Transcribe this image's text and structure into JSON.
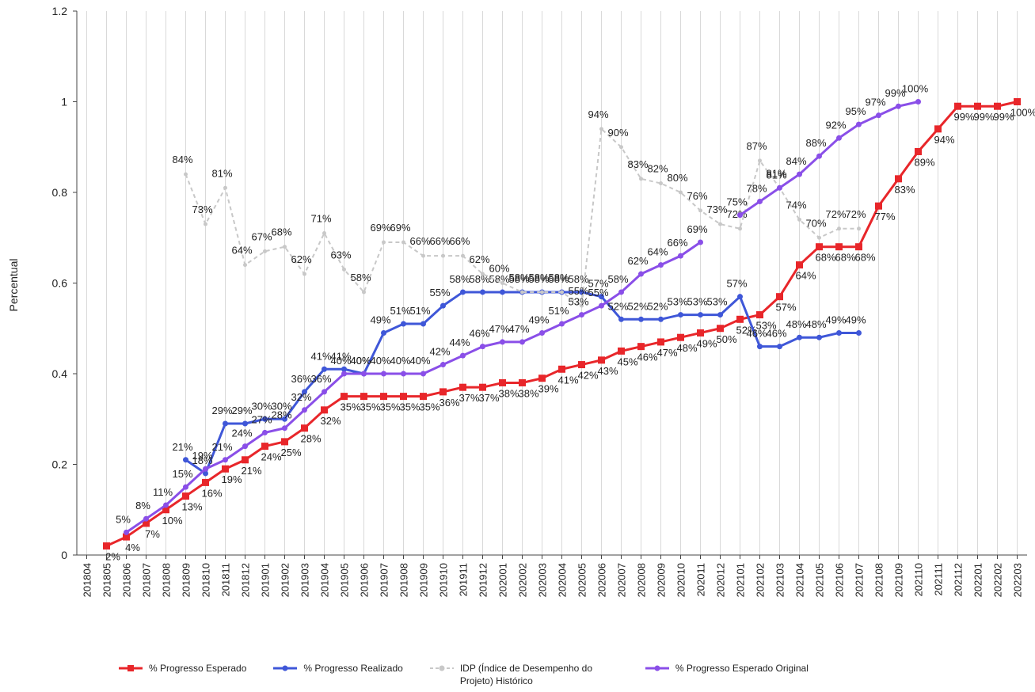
{
  "chart_data": {
    "type": "line",
    "y_label": "Percentual",
    "categories": [
      "201804",
      "201805",
      "201806",
      "201807",
      "201808",
      "201809",
      "201810",
      "201811",
      "201812",
      "201901",
      "201902",
      "201903",
      "201904",
      "201905",
      "201906",
      "201907",
      "201908",
      "201909",
      "201910",
      "201911",
      "201912",
      "202001",
      "202002",
      "202003",
      "202004",
      "202005",
      "202006",
      "202007",
      "202008",
      "202009",
      "202010",
      "202011",
      "202012",
      "202101",
      "202102",
      "202103",
      "202104",
      "202105",
      "202106",
      "202107",
      "202108",
      "202109",
      "202110",
      "202111",
      "202112",
      "202201",
      "202202",
      "202203"
    ],
    "ylim": [
      0,
      1.2
    ],
    "yticks": [
      0,
      0.2,
      0.4,
      0.6,
      0.8,
      1,
      1.2
    ],
    "grid": true,
    "series": [
      {
        "name": "% Progresso Esperado",
        "color": "#e8262a",
        "marker": "square",
        "values": [
          null,
          0.02,
          0.04,
          0.07,
          0.1,
          0.13,
          0.16,
          0.19,
          0.21,
          0.24,
          0.25,
          0.28,
          0.32,
          0.35,
          0.35,
          0.35,
          0.35,
          0.35,
          0.36,
          0.37,
          0.37,
          0.38,
          0.38,
          0.39,
          0.41,
          0.42,
          0.43,
          0.45,
          0.46,
          0.47,
          0.48,
          0.49,
          0.5,
          0.52,
          0.53,
          0.57,
          0.64,
          0.68,
          0.68,
          0.68,
          0.77,
          0.83,
          0.89,
          0.94,
          0.99,
          0.99,
          0.99,
          1.0
        ],
        "value_labels": [
          null,
          "2%",
          "4%",
          "7%",
          "10%",
          "13%",
          "16%",
          "19%",
          "21%",
          "24%",
          "25%",
          "28%",
          "32%",
          "35%",
          "35%",
          "35%",
          "35%",
          "35%",
          "36%",
          "37%",
          "37%",
          "38%",
          "38%",
          "39%",
          "41%",
          "42%",
          "43%",
          "45%",
          "46%",
          "47%",
          "48%",
          "49%",
          "50%",
          "52%",
          "53%",
          "57%",
          "64%",
          "68%",
          "68%",
          "68%",
          "77%",
          "83%",
          "89%",
          "94%",
          "99%",
          "99%",
          "99%",
          "100%"
        ]
      },
      {
        "name": "% Progresso Realizado",
        "color": "#3f57d8",
        "marker": "circle",
        "values": [
          null,
          null,
          null,
          null,
          null,
          0.21,
          0.18,
          0.29,
          0.29,
          0.3,
          0.3,
          0.36,
          0.41,
          0.41,
          0.4,
          0.49,
          0.51,
          0.51,
          0.55,
          0.58,
          0.58,
          0.58,
          0.58,
          0.58,
          0.58,
          0.58,
          0.57,
          0.52,
          0.52,
          0.52,
          0.53,
          0.53,
          0.53,
          0.57,
          0.46,
          0.46,
          0.48,
          0.48,
          0.49,
          0.49,
          null,
          null,
          null,
          null,
          null,
          null,
          null,
          null
        ],
        "value_labels": [
          null,
          null,
          null,
          null,
          null,
          "21%",
          "18%",
          "29%",
          "29%",
          "30%",
          "30%",
          "36%",
          "41%",
          "41%",
          "40%",
          "49%",
          "51%",
          "51%",
          "55%",
          "58%",
          "58%",
          "58%",
          "58%",
          "58%",
          "58%",
          "58%",
          "57%",
          "52%",
          "52%",
          "52%",
          "53%",
          "53%",
          "53%",
          "57%",
          "46%",
          "46%",
          "48%",
          "48%",
          "49%",
          "49%",
          null,
          null,
          null,
          null,
          null,
          null,
          null,
          null
        ]
      },
      {
        "name": "IDP (Índice de Desempenho do Projeto) Histórico",
        "color": "#c8c8c8",
        "marker": "circle",
        "dashed": true,
        "values": [
          null,
          null,
          null,
          null,
          null,
          0.84,
          0.73,
          0.81,
          0.64,
          0.67,
          0.68,
          0.62,
          0.71,
          0.63,
          0.58,
          0.69,
          0.69,
          0.66,
          0.66,
          0.66,
          0.62,
          0.6,
          0.58,
          0.58,
          0.58,
          0.55,
          0.94,
          0.9,
          0.83,
          0.82,
          0.8,
          0.76,
          0.73,
          0.72,
          0.87,
          0.81,
          0.74,
          0.7,
          0.72,
          0.72,
          null,
          null,
          null,
          null,
          null,
          null,
          null,
          null
        ],
        "value_labels": [
          null,
          null,
          null,
          null,
          null,
          "84%",
          "73%",
          "81%",
          "64%",
          "67%",
          "68%",
          "62%",
          "71%",
          "63%",
          "58%",
          "69%",
          "69%",
          "66%",
          "66%",
          "66%",
          "62%",
          "60%",
          "58%",
          "58%",
          "58%",
          "55%",
          "94%",
          "90%",
          "83%",
          "82%",
          "80%",
          "76%",
          "73%",
          "72%",
          "87%",
          "81%",
          "74%",
          "70%",
          "72%",
          "72%",
          null,
          null,
          null,
          null,
          null,
          null,
          null,
          null
        ]
      },
      {
        "name": "% Progresso Esperado Original",
        "color": "#8a4fe8",
        "marker": "circle",
        "values": [
          null,
          null,
          0.05,
          0.08,
          0.11,
          0.15,
          0.19,
          0.21,
          0.24,
          0.27,
          0.28,
          0.32,
          0.36,
          0.4,
          0.4,
          0.4,
          0.4,
          0.4,
          0.42,
          0.44,
          0.46,
          0.47,
          0.47,
          0.49,
          0.51,
          0.53,
          0.55,
          0.58,
          0.62,
          0.64,
          0.66,
          0.69,
          null,
          0.75,
          0.78,
          0.81,
          0.84,
          0.88,
          0.92,
          0.95,
          0.97,
          0.99,
          1.0,
          null,
          null,
          null,
          null,
          null
        ],
        "value_labels": [
          null,
          null,
          "5%",
          "8%",
          "11%",
          "15%",
          "19%",
          "21%",
          "24%",
          "27%",
          "28%",
          "32%",
          "36%",
          "40%",
          "40%",
          "40%",
          "40%",
          "40%",
          "42%",
          "44%",
          "46%",
          "47%",
          "47%",
          "49%",
          "51%",
          "53%",
          "55%",
          "58%",
          "62%",
          "64%",
          "66%",
          "69%",
          null,
          "75%",
          "78%",
          "81%",
          "84%",
          "88%",
          "92%",
          "95%",
          "97%",
          "99%",
          "100%",
          null,
          null,
          null,
          null,
          null
        ]
      }
    ]
  }
}
